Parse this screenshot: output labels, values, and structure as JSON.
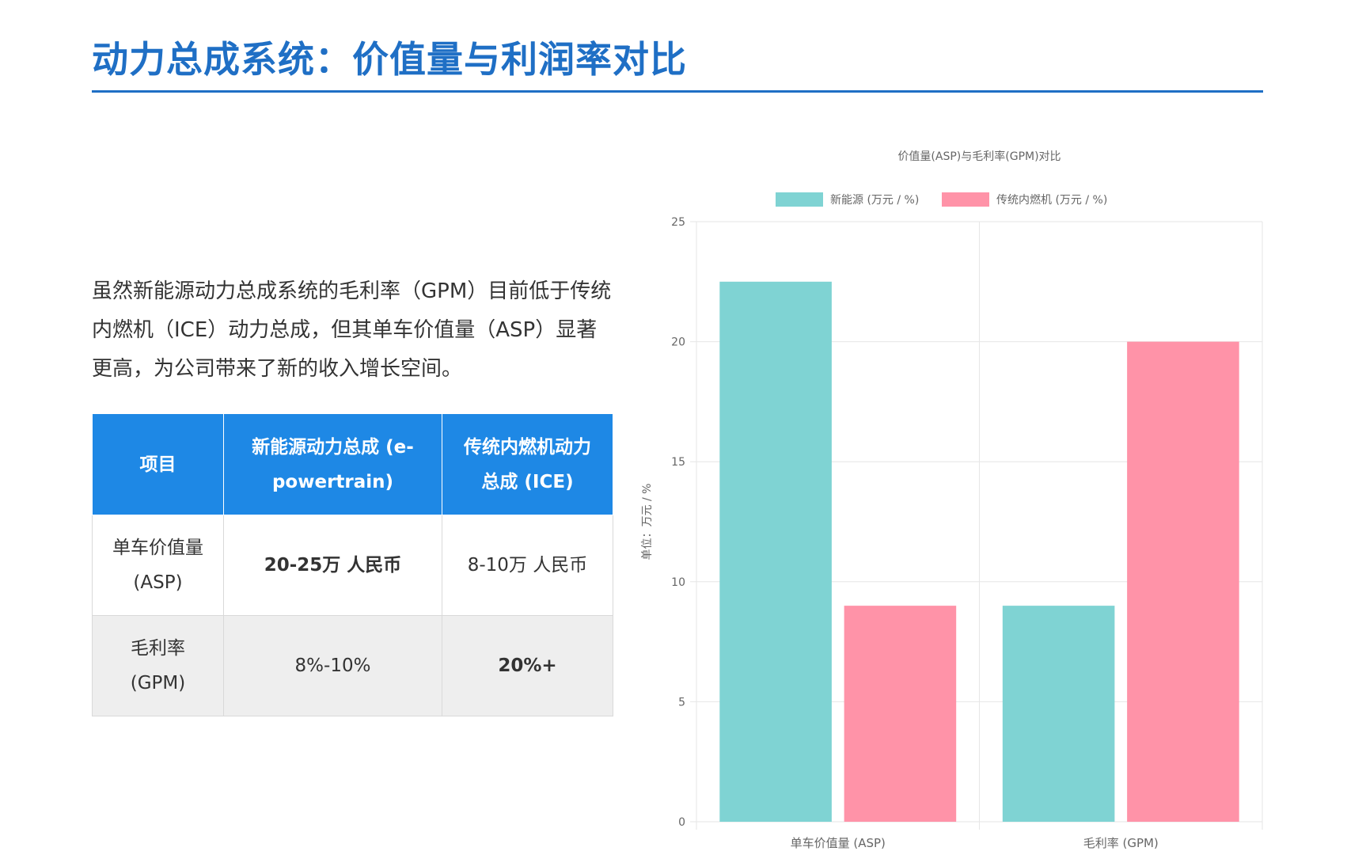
{
  "page": {
    "title": "动力总成系统：价值量与利润率对比",
    "intro": "虽然新能源动力总成系统的毛利率（GPM）目前低于传统内燃机（ICE）动力总成，但其单车价值量（ASP）显著更高，为公司带来了新的收入增长空间。"
  },
  "table": {
    "headers": [
      "项目",
      "新能源动力总成 (e-powertrain)",
      "传统内燃机动力总成 (ICE)"
    ],
    "rows": [
      {
        "item": "单车价值量 (ASP)",
        "ev": "20-25万 人民币",
        "ice": "8-10万 人民币"
      },
      {
        "item": "毛利率 (GPM)",
        "ev": "8%-10%",
        "ice": "20%+"
      }
    ]
  },
  "colors": {
    "accent": "#1f6fc5",
    "header_bg": "#1e88e5",
    "highlight": "#d32f2f",
    "series_ev": "#7fd3d3",
    "series_ice": "#ff93a8"
  },
  "chart_data": {
    "type": "bar",
    "title": "价值量(ASP)与毛利率(GPM)对比",
    "categories": [
      "单车价值量 (ASP)",
      "毛利率 (GPM)"
    ],
    "series": [
      {
        "name": "新能源 (万元 / %)",
        "values": [
          22.5,
          9
        ]
      },
      {
        "name": "传统内燃机 (万元 / %)",
        "values": [
          9,
          20
        ]
      }
    ],
    "ylabel": "单位：万元 / %",
    "ylim": [
      0,
      25
    ],
    "yticks": [
      0,
      5,
      10,
      15,
      20,
      25
    ],
    "grid": true,
    "legend": "top-center"
  }
}
